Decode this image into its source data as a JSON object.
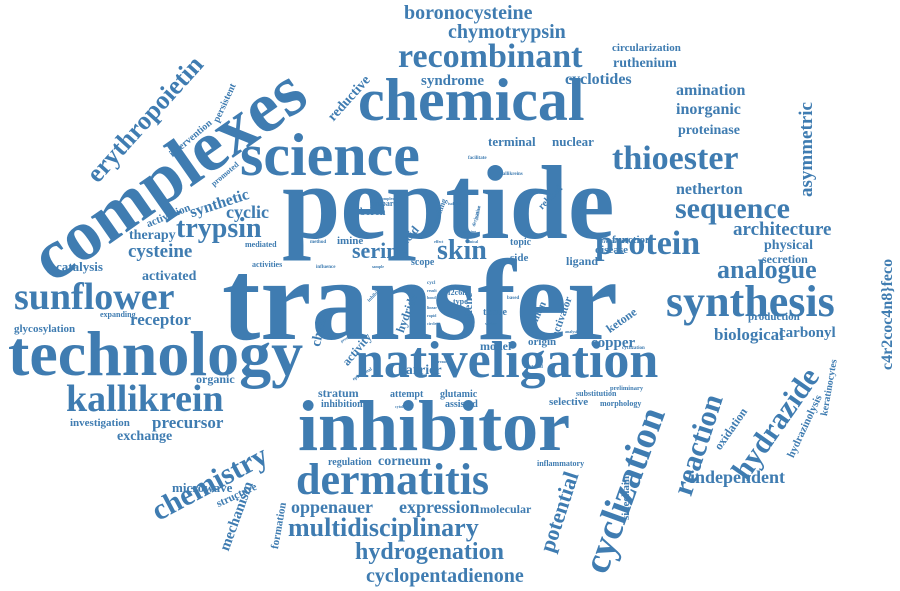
{
  "color": "#3f7cb1",
  "background": "#ffffff",
  "words": {
    "peptide": "peptide",
    "transfer": "transfer",
    "complexes": "complexes",
    "inhibitor": "inhibitor",
    "chemical": "chemical",
    "science": "science",
    "technology": "technology",
    "nativeligation": "nativeligation",
    "dermatitis": "dermatitis",
    "synthesis": "synthesis",
    "cyclization": "cyclization",
    "sunflower": "sunflower",
    "kallikrein": "kallikrein",
    "thioester": "thioester",
    "recombinant": "recombinant",
    "protein": "protein",
    "sequence": "sequence",
    "chemistry": "chemistry",
    "hydrazide": "hydrazide",
    "reaction": "reaction",
    "multidisciplinary": "multidisciplinary",
    "erythropoietin": "erythropoietin",
    "hydrogenation": "hydrogenation",
    "boronocysteine": "boronocysteine",
    "chymotrypsin": "chymotrypsin",
    "cyclopentadienone": "cyclopentadienone",
    "potential": "potential",
    "analogue": "analogue",
    "trypsin": "trypsin",
    "skin": "skin",
    "serine": "serine",
    "cysteine": "cysteine",
    "architecture": "architecture",
    "asymmetric": "asymmetric",
    "expression": "expression",
    "oppenauer": "oppenauer",
    "independent": "independent",
    "biological": "biological",
    "precursor": "precursor",
    "mechanism": "mechanism",
    "receptor": "receptor",
    "cyclic": "cyclic",
    "synthetic": "synthetic",
    "netherton": "netherton",
    "syndrome": "syndrome",
    "cyclotides": "cyclotides",
    "ruthenium": "ruthenium",
    "amination": "amination",
    "inorganic": "inorganic",
    "proteinase": "proteinase",
    "terminal": "terminal",
    "nuclear": "nuclear",
    "corneum": "corneum",
    "exchange": "exchange",
    "activated": "activated",
    "catalysis": "catalysis",
    "copper": "copper",
    "barrier": "barrier",
    "model": "model",
    "stratum": "stratum",
    "physical": "physical",
    "carbonyl": "carbonyl",
    "circularization": "circularization",
    "reductive": "reductive",
    "c4r2coc4n8jfeco": "c4r2coc4n8}feco",
    "keratinocytes": "keratinocytes",
    "hydrazinolysis": "hydrazinolysis",
    "oxidation": "oxidation",
    "therapy": "therapy",
    "secretion": "secretion",
    "production": "production",
    "activation": "activation",
    "ketone": "ketone",
    "chain": "chain",
    "activity": "activity",
    "molecular": "molecular",
    "sidechain": "sidechain",
    "formation": "formation",
    "structure": "structure",
    "microwave": "microwave",
    "glycosylation": "glycosylation",
    "organic": "organic",
    "investigation": "investigation",
    "regulation": "regulation",
    "selective": "selective",
    "function": "function",
    "disease": "disease",
    "ligand": "ligand",
    "acid": "acid",
    "imine": "imine",
    "hydride": "hydride",
    "topic": "topic",
    "side": "side",
    "related": "related",
    "intervention": "intervention",
    "persistent": "persistent",
    "promoted": "promoted",
    "mediated": "mediated",
    "activities": "activities",
    "expanding": "expanding",
    "inhibition": "inhibition",
    "attempt": "attempt",
    "glutamic": "glutamic",
    "assisted": "assisted",
    "substitution": "substitution",
    "preliminary": "preliminary",
    "morphology": "morphology",
    "inflammatory": "inflammatory",
    "origin": "origin",
    "boron": "boron",
    "prepare": "prepare",
    "scope": "scope",
    "diene": "diene",
    "tissue": "tissue",
    "human": "human",
    "activator": "activator",
    "facilitate": "facilitate",
    "kallikreins": "kallikreins",
    "method": "method",
    "influence": "influence",
    "making": "making",
    "derivative": "derivative",
    "inhibit": "inhibit",
    "f2c6h": "f2c6h",
    "type": "type",
    "cyclization_small": "cyclization",
    "treatment": "treatment",
    "cytokines": "cytokines",
    "epidermal": "epidermal",
    "protease": "protease",
    "based": "based",
    "analysis": "analysis",
    "bacterial": "bacterial",
    "rapid": "rapid",
    "circle": "circle",
    "bond": "bond",
    "linear": "linear",
    "result": "result",
    "increase": "increase",
    "complex": "complex",
    "variety": "variety",
    "addition": "addition",
    "isolated": "isolated",
    "splicing": "splicing",
    "effect": "effect",
    "cycl": "cycl",
    "sample": "sample",
    "clinical": "clinical"
  }
}
